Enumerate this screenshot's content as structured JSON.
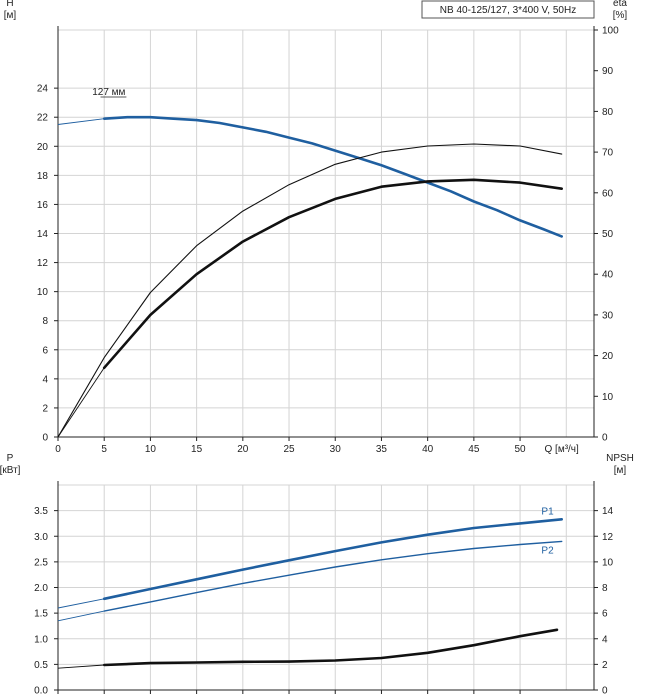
{
  "chart_data": [
    {
      "type": "line",
      "title": "NB 40-125/127, 3*400 V, 50Hz",
      "y_left_label": [
        "H",
        "[м]"
      ],
      "y_right_label": [
        "eta",
        "[%]"
      ],
      "x_label": "Q [м³/ч]",
      "x_ticks": [
        "0",
        "5",
        "10",
        "15",
        "20",
        "25",
        "30",
        "35",
        "40",
        "45",
        "50"
      ],
      "y_left_ticks": [
        "0",
        "2",
        "4",
        "6",
        "8",
        "10",
        "12",
        "14",
        "16",
        "18",
        "20",
        "22",
        "24"
      ],
      "y_right_ticks": [
        "0",
        "10",
        "20",
        "30",
        "40",
        "50",
        "60",
        "70",
        "80",
        "90",
        "100"
      ],
      "xlim": [
        0,
        58
      ],
      "ylim_left": [
        0,
        28
      ],
      "ylim_right": [
        0,
        100
      ],
      "grid": true,
      "annotation": "127 мм",
      "series": [
        {
          "name": "127 мм",
          "axis": "left",
          "color": "#1f5fa0",
          "style": "bold",
          "x": [
            0,
            5,
            7.5,
            10,
            12.5,
            15,
            17.5,
            20,
            22.5,
            25,
            27.5,
            30,
            32.5,
            35,
            37.5,
            40,
            42.5,
            45,
            47.5,
            50,
            52.5,
            54.5
          ],
          "y": [
            21.5,
            21.9,
            22.0,
            22.0,
            21.9,
            21.8,
            21.6,
            21.3,
            21.0,
            20.6,
            20.2,
            19.7,
            19.2,
            18.7,
            18.1,
            17.5,
            16.9,
            16.2,
            15.6,
            14.9,
            14.3,
            13.8
          ],
          "thin_segment_before": 5
        },
        {
          "axis": "right",
          "color": "#111111",
          "style": "thin",
          "x": [
            0,
            5,
            10,
            15,
            20,
            25,
            30,
            35,
            40,
            45,
            50,
            54.5
          ],
          "y": [
            0,
            19.5,
            35.5,
            47,
            55.5,
            62,
            67,
            70,
            71.5,
            72,
            71.5,
            69.5
          ],
          "thin_segment_before": 0
        },
        {
          "axis": "right",
          "color": "#111111",
          "style": "bold",
          "x": [
            0,
            5,
            10,
            15,
            20,
            25,
            30,
            35,
            40,
            45,
            50,
            54.5
          ],
          "y": [
            0,
            17,
            30,
            40,
            48,
            54,
            58.5,
            61.5,
            62.8,
            63.2,
            62.5,
            61
          ],
          "thin_segment_before": 5
        }
      ]
    },
    {
      "type": "line",
      "y_left_label": [
        "P",
        "[кВт]"
      ],
      "y_right_label": [
        "NPSH",
        "[м]"
      ],
      "y_left_ticks": [
        "0.0",
        "0.5",
        "1.0",
        "1.5",
        "2.0",
        "2.5",
        "3.0",
        "3.5"
      ],
      "y_right_ticks": [
        "0",
        "2",
        "4",
        "6",
        "8",
        "10",
        "12",
        "14"
      ],
      "xlim": [
        0,
        58
      ],
      "ylim_left": [
        0,
        4.0
      ],
      "ylim_right": [
        0,
        16
      ],
      "grid": true,
      "series": [
        {
          "name": "P1",
          "axis": "left",
          "color": "#1f5fa0",
          "style": "bold",
          "x": [
            0,
            5,
            10,
            15,
            20,
            25,
            30,
            35,
            40,
            45,
            50,
            54.5
          ],
          "y": [
            1.6,
            1.78,
            1.97,
            2.16,
            2.35,
            2.53,
            2.71,
            2.88,
            3.03,
            3.16,
            3.25,
            3.33
          ],
          "thin_segment_before": 5
        },
        {
          "name": "P2",
          "axis": "left",
          "color": "#1f5fa0",
          "style": "normal",
          "x": [
            0,
            5,
            10,
            15,
            20,
            25,
            30,
            35,
            40,
            45,
            50,
            54.5
          ],
          "y": [
            1.35,
            1.54,
            1.72,
            1.9,
            2.08,
            2.24,
            2.4,
            2.54,
            2.66,
            2.76,
            2.84,
            2.9
          ],
          "thin_segment_before": 5
        },
        {
          "axis": "right",
          "color": "#111111",
          "style": "bold",
          "x": [
            0,
            5,
            10,
            15,
            20,
            25,
            30,
            35,
            40,
            45,
            50,
            54
          ],
          "y": [
            1.7,
            1.95,
            2.1,
            2.15,
            2.2,
            2.22,
            2.3,
            2.5,
            2.9,
            3.5,
            4.2,
            4.7
          ],
          "thin_segment_before": 5
        }
      ]
    }
  ]
}
